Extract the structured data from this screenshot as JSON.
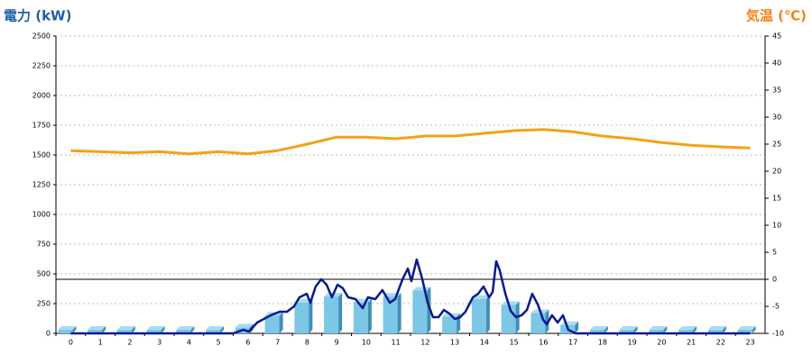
{
  "chart_data": {
    "type": "combo",
    "title": "電力 (kW)",
    "y2_title": "気温 (℃)",
    "categories": [
      "0",
      "1",
      "2",
      "3",
      "4",
      "5",
      "6",
      "7",
      "8",
      "9",
      "10",
      "11",
      "12",
      "13",
      "14",
      "15",
      "16",
      "17",
      "18",
      "19",
      "20",
      "21",
      "22",
      "23"
    ],
    "ylim": [
      0,
      2500
    ],
    "yticks": [
      0,
      250,
      500,
      750,
      1000,
      1250,
      1500,
      1750,
      2000,
      2250,
      2500
    ],
    "y2lim": [
      -10,
      45
    ],
    "y2ticks": [
      -10,
      -5,
      0,
      5,
      10,
      15,
      20,
      25,
      30,
      35,
      40,
      45
    ],
    "grid": true,
    "y2_zero_line": true,
    "series": [
      {
        "type": "bar",
        "color": "#7cc6e6",
        "values": [
          30,
          30,
          30,
          30,
          30,
          30,
          50,
          150,
          260,
          310,
          260,
          310,
          360,
          140,
          290,
          240,
          170,
          70,
          30,
          30,
          30,
          30,
          30,
          30
        ]
      },
      {
        "type": "line",
        "color": "#0a1a8c",
        "x": [
          0,
          5.5,
          5.85,
          6.03,
          6.31,
          6.77,
          7.07,
          7.32,
          7.56,
          7.74,
          7.99,
          8.11,
          8.29,
          8.48,
          8.66,
          8.84,
          9.03,
          9.21,
          9.39,
          9.64,
          9.88,
          10.06,
          10.31,
          10.55,
          10.8,
          10.98,
          11.23,
          11.41,
          11.53,
          11.71,
          11.9,
          12.08,
          12.26,
          12.45,
          12.63,
          12.81,
          13,
          13.18,
          13.36,
          13.61,
          13.79,
          13.97,
          14.16,
          14.28,
          14.4,
          14.52,
          14.71,
          14.89,
          15.07,
          15.26,
          15.44,
          15.62,
          15.81,
          15.99,
          16.11,
          16.29,
          16.48,
          16.66,
          16.84,
          17.09,
          23
        ],
        "values": [
          0,
          0,
          30,
          15,
          91,
          152,
          182,
          182,
          227,
          303,
          333,
          258,
          394,
          455,
          409,
          303,
          409,
          379,
          303,
          288,
          212,
          303,
          288,
          364,
          258,
          288,
          455,
          545,
          439,
          621,
          455,
          258,
          136,
          136,
          197,
          167,
          121,
          136,
          182,
          303,
          333,
          394,
          303,
          348,
          606,
          530,
          333,
          189,
          136,
          152,
          197,
          333,
          242,
          114,
          76,
          152,
          91,
          152,
          30,
          0,
          0
        ]
      },
      {
        "type": "line",
        "axis": "y2",
        "color": "#f5a01a",
        "values": [
          23.8,
          23.6,
          23.4,
          23.6,
          23.2,
          23.6,
          23.2,
          23.8,
          25,
          26.3,
          26.3,
          26,
          26.5,
          26.5,
          27,
          27.5,
          27.7,
          27.3,
          26.5,
          26,
          25.3,
          24.8,
          24.5,
          24.3
        ]
      }
    ]
  }
}
